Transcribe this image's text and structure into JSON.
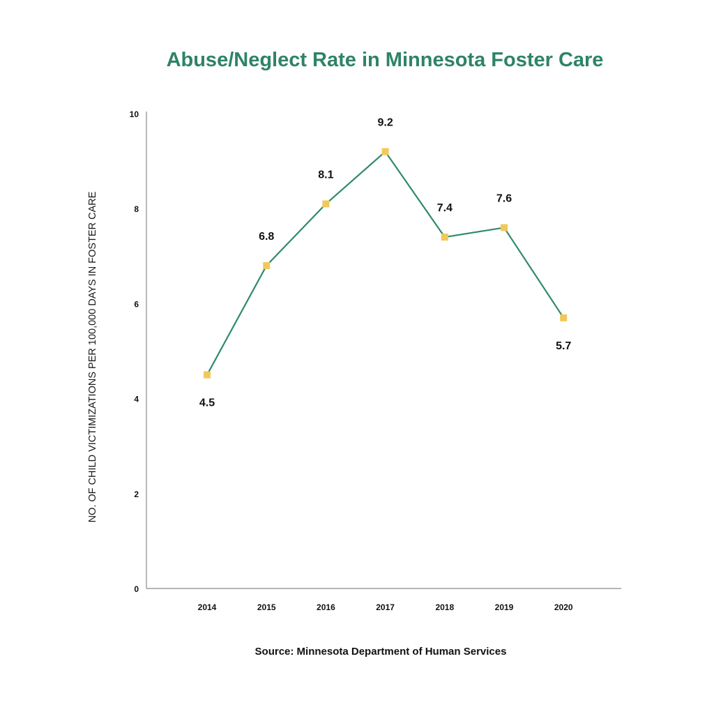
{
  "chart_data": {
    "type": "line",
    "title": "Abuse/Neglect Rate in Minnesota Foster Care",
    "xlabel": "",
    "ylabel": "NO. OF CHILD VICTIMIZATIONS PER 100,000 DAYS IN FOSTER CARE",
    "source": "Source: Minnesota Department of Human Services",
    "categories": [
      "2014",
      "2015",
      "2016",
      "2017",
      "2018",
      "2019",
      "2020"
    ],
    "series": [
      {
        "name": "Abuse/Neglect Rate",
        "values": [
          4.5,
          6.8,
          8.1,
          9.2,
          7.4,
          7.6,
          5.7
        ],
        "data_labels": [
          "4.5",
          "6.8",
          "8.1",
          "9.2",
          "7.4",
          "7.6",
          "5.7"
        ],
        "label_position": [
          "below",
          "above",
          "above",
          "above",
          "above",
          "above",
          "below"
        ]
      }
    ],
    "ylim": [
      0,
      10
    ],
    "yticks": [
      0,
      2,
      4,
      6,
      8,
      10
    ],
    "ytick_labels": [
      "0",
      "2",
      "4",
      "6",
      "8",
      "10"
    ],
    "grid": false,
    "legend": "none",
    "colors": {
      "title": "#2e8465",
      "line": "#2e8a6a",
      "marker": "#f0c85c",
      "axis": "#8a8a8a"
    }
  }
}
